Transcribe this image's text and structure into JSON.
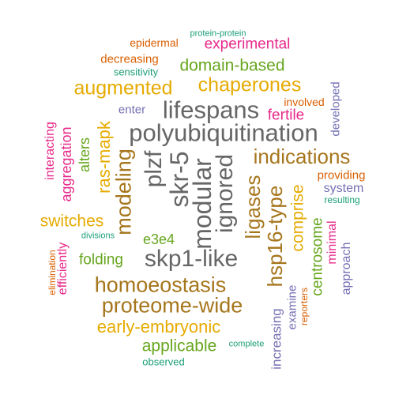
{
  "palette": {
    "green": "#1b9e77",
    "orange": "#d95f02",
    "purple": "#7570b3",
    "pink": "#e7298a",
    "lime": "#66a61e",
    "gold": "#e6ab02",
    "brown": "#a6761d",
    "gray": "#666666"
  },
  "words": [
    {
      "text": "protein-protein",
      "color": "green"
    },
    {
      "text": "epidermal",
      "color": "orange"
    },
    {
      "text": "experimental",
      "color": "pink"
    },
    {
      "text": "decreasing",
      "color": "orange"
    },
    {
      "text": "sensitivity",
      "color": "green"
    },
    {
      "text": "domain-based",
      "color": "lime"
    },
    {
      "text": "augmented",
      "color": "gold"
    },
    {
      "text": "chaperones",
      "color": "gold"
    },
    {
      "text": "lifespans",
      "color": "gray"
    },
    {
      "text": "enter",
      "color": "purple"
    },
    {
      "text": "involved",
      "color": "orange"
    },
    {
      "text": "fertile",
      "color": "pink"
    },
    {
      "text": "developed",
      "color": "purple"
    },
    {
      "text": "polyubiquitination",
      "color": "gray"
    },
    {
      "text": "ras-mapk",
      "color": "gold"
    },
    {
      "text": "interacting",
      "color": "pink"
    },
    {
      "text": "aggregation",
      "color": "pink"
    },
    {
      "text": "alters",
      "color": "lime"
    },
    {
      "text": "modeling",
      "color": "brown"
    },
    {
      "text": "plzf",
      "color": "gray"
    },
    {
      "text": "skr-5",
      "color": "gray"
    },
    {
      "text": "modular",
      "color": "gray"
    },
    {
      "text": "ignored",
      "color": "gray"
    },
    {
      "text": "indications",
      "color": "brown"
    },
    {
      "text": "ligases",
      "color": "brown"
    },
    {
      "text": "hsp16-type",
      "color": "brown"
    },
    {
      "text": "comprise",
      "color": "gold"
    },
    {
      "text": "providing",
      "color": "orange"
    },
    {
      "text": "system",
      "color": "purple"
    },
    {
      "text": "resulting",
      "color": "green"
    },
    {
      "text": "switches",
      "color": "gold"
    },
    {
      "text": "e3e4",
      "color": "lime"
    },
    {
      "text": "divisions",
      "color": "green"
    },
    {
      "text": "efficiently",
      "color": "pink"
    },
    {
      "text": "elimination",
      "color": "orange"
    },
    {
      "text": "folding",
      "color": "lime"
    },
    {
      "text": "skp1-like",
      "color": "gray"
    },
    {
      "text": "centrosome",
      "color": "lime"
    },
    {
      "text": "minimal",
      "color": "pink"
    },
    {
      "text": "approach",
      "color": "purple"
    },
    {
      "text": "homoeostasis",
      "color": "brown"
    },
    {
      "text": "proteome-wide",
      "color": "brown"
    },
    {
      "text": "examine",
      "color": "purple"
    },
    {
      "text": "reporters",
      "color": "orange"
    },
    {
      "text": "increasing",
      "color": "purple"
    },
    {
      "text": "early-embryonic",
      "color": "gold"
    },
    {
      "text": "applicable",
      "color": "lime"
    },
    {
      "text": "complete",
      "color": "green"
    },
    {
      "text": "observed",
      "color": "green"
    }
  ]
}
